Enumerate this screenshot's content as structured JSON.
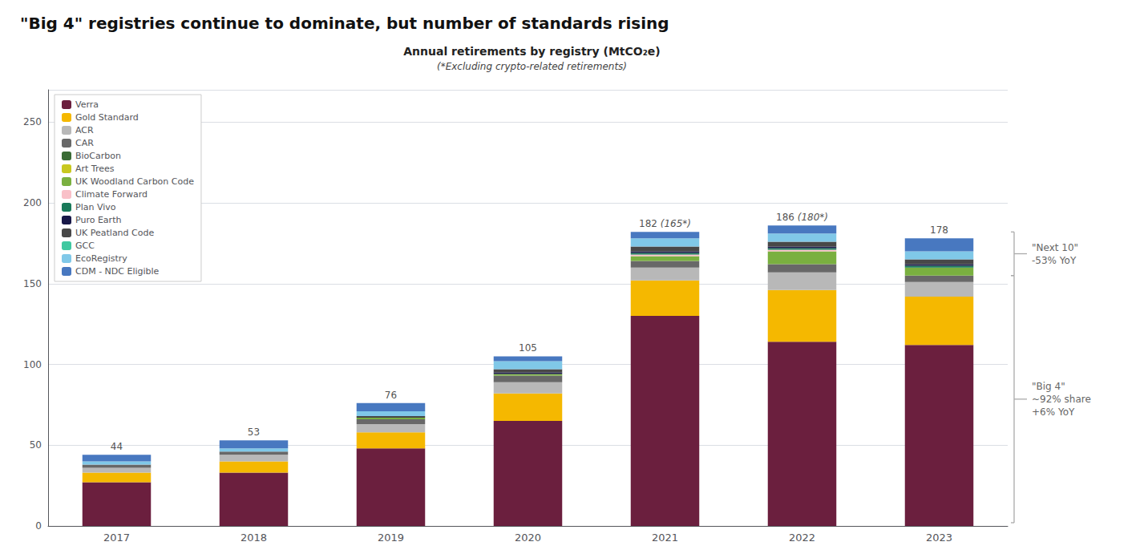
{
  "chart_data": {
    "type": "bar",
    "title": "\"Big 4\" registries continue to dominate, but number of standards rising",
    "chart_title": "Annual retirements by registry (MtCO₂e)",
    "subtitle": "(*Excluding crypto-related retirements)",
    "categories": [
      2017,
      2018,
      2019,
      2020,
      2021,
      2022,
      2023
    ],
    "stacked": true,
    "series": [
      {
        "name": "Verra",
        "color": "#6b1f3e",
        "values": [
          27,
          33,
          48,
          65,
          130,
          114,
          112
        ]
      },
      {
        "name": "Gold Standard",
        "color": "#f5b800",
        "values": [
          6,
          7,
          10,
          17,
          22,
          32,
          30
        ]
      },
      {
        "name": "ACR",
        "color": "#b8b8b8",
        "values": [
          3,
          4,
          5,
          7,
          8,
          11,
          9
        ]
      },
      {
        "name": "CAR",
        "color": "#686868",
        "values": [
          2,
          2,
          3,
          4,
          4,
          5,
          4
        ]
      },
      {
        "name": "BioCarbon",
        "color": "#3a6b35",
        "values": [
          0,
          0,
          0,
          0,
          0,
          0,
          0
        ]
      },
      {
        "name": "Art Trees",
        "color": "#c8c820",
        "values": [
          0,
          0,
          0,
          0,
          0,
          0,
          0
        ]
      },
      {
        "name": "UK Woodland Carbon Code",
        "color": "#7ab040",
        "values": [
          0,
          0,
          1,
          1,
          3,
          8,
          5
        ]
      },
      {
        "name": "Climate Forward",
        "color": "#f9c0c8",
        "values": [
          0,
          0,
          0,
          0,
          1,
          1,
          0
        ]
      },
      {
        "name": "Plan Vivo",
        "color": "#1a7a5a",
        "values": [
          0,
          0,
          0,
          0,
          1,
          1,
          1
        ]
      },
      {
        "name": "Puro Earth",
        "color": "#181848",
        "values": [
          0,
          0,
          0,
          1,
          1,
          1,
          1
        ]
      },
      {
        "name": "UK Peatland Code",
        "color": "#484848",
        "values": [
          0,
          0,
          1,
          2,
          3,
          3,
          3
        ]
      },
      {
        "name": "GCC",
        "color": "#40c8a0",
        "values": [
          0,
          0,
          0,
          0,
          0,
          0,
          0
        ]
      },
      {
        "name": "EcoRegistry",
        "color": "#80c8e8",
        "values": [
          2,
          2,
          3,
          5,
          5,
          5,
          5
        ]
      },
      {
        "name": "CDM - NDC Eligible",
        "color": "#4878c0",
        "values": [
          4,
          5,
          5,
          3,
          4,
          5,
          8
        ]
      }
    ],
    "totals": [
      44,
      53,
      76,
      105,
      182,
      186,
      178
    ],
    "totals_labels": [
      "44",
      "53",
      "76",
      "105",
      "182 (165*)",
      "186 (180*)",
      "178"
    ],
    "ylim": [
      0,
      270
    ],
    "yticks": [
      0,
      50,
      100,
      150,
      200,
      250
    ],
    "grid": true,
    "legend": "upper left",
    "annotations": [
      {
        "text": "\"Next 10\"\n-53% YoY",
        "y_from": 155,
        "y_to": 182
      },
      {
        "text": "\"Big 4\"\n~92% share\n+6% YoY",
        "y_from": 2,
        "y_to": 155
      }
    ]
  }
}
